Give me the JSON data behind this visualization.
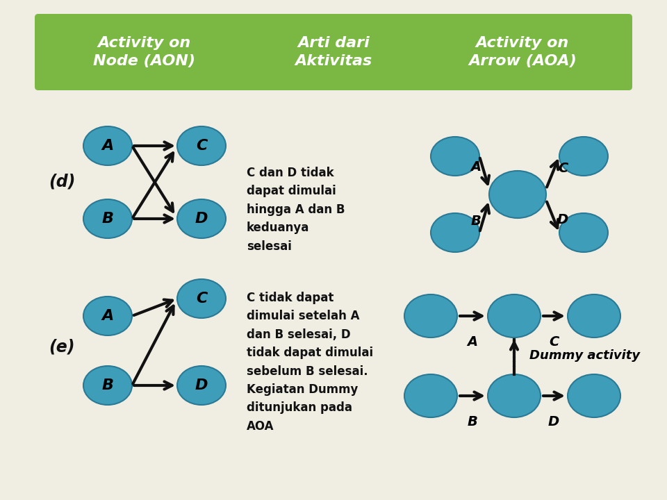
{
  "bg_color": "#f0ede3",
  "header_bg": "#7ab843",
  "header_text_color": "#ffffff",
  "node_color": "#3e9db8",
  "node_edge_color": "#2a7a95",
  "arrow_color": "#111111",
  "text_color": "#111111",
  "header_col1": "Activity on\nNode (AON)",
  "header_col2": "Arti dari\nAktivitas",
  "header_col3": "Activity on\nArrow (AOA)",
  "label_d": "(d)",
  "label_e": "(e)",
  "desc_d": "C dan D tidak\ndapat dimulai\nhingga A dan B\nkeduanya\nselesai",
  "desc_e": "C tidak dapat\ndimulai setelah A\ndan B selesai, D\ntidak dapat dimulai\nsebelum B selesai.\nKegiatan Dummy\nditunjukan pada\nAOA",
  "dummy_label": "Dummy activity"
}
